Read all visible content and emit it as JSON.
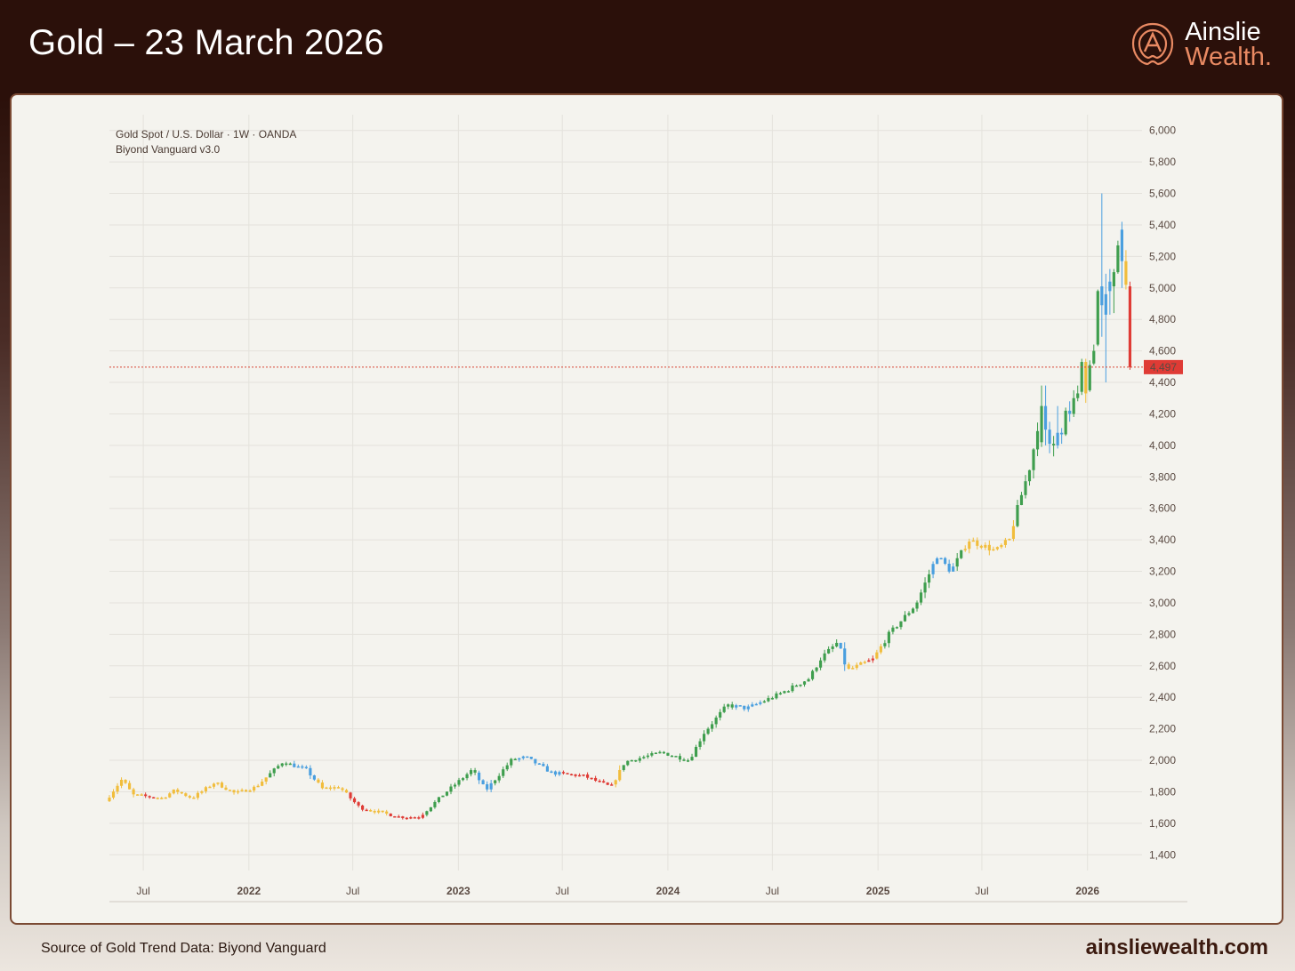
{
  "header": {
    "title": "Gold – 23 March 2026",
    "brand_name": "Ainslie",
    "brand_sub": "Wealth."
  },
  "footer": {
    "source": "Source of Gold Trend Data: Biyond Vanguard",
    "website": "ainsliewealth.com"
  },
  "colors": {
    "green": "#3f9e4e",
    "blue": "#4a9fdf",
    "yellow": "#f1bd3c",
    "red": "#df3b35",
    "price_line": "#d64535"
  },
  "chart_data": {
    "type": "candlestick",
    "title": "Gold Spot / U.S. Dollar · 1W · OANDA",
    "subtitle": "Biyond Vanguard v3.0",
    "ylim": [
      1300,
      6100
    ],
    "yticks": [
      1400,
      1600,
      1800,
      2000,
      2200,
      2400,
      2600,
      2800,
      3000,
      3200,
      3400,
      3600,
      3800,
      4000,
      4200,
      4400,
      4600,
      4800,
      5000,
      5200,
      5400,
      5600,
      5800,
      6000
    ],
    "ytick_labels": [
      "1,400",
      "1,600",
      "1,800",
      "2,000",
      "2,200",
      "2,400",
      "2,600",
      "2,800",
      "3,000",
      "3,200",
      "3,400",
      "3,600",
      "3,800",
      "4,000",
      "4,200",
      "4,400",
      "4,600",
      "4,800",
      "5,000",
      "5,200",
      "5,400",
      "5,600",
      "5,800",
      "6,000"
    ],
    "x_start": "2021-05-03",
    "x_end": "2026-04-06",
    "xticks": [
      {
        "date": "2021-07-01",
        "label": "Jul",
        "bold": false
      },
      {
        "date": "2022-01-01",
        "label": "2022",
        "bold": true
      },
      {
        "date": "2022-07-01",
        "label": "Jul",
        "bold": false
      },
      {
        "date": "2023-01-01",
        "label": "2023",
        "bold": true
      },
      {
        "date": "2023-07-01",
        "label": "Jul",
        "bold": false
      },
      {
        "date": "2024-01-01",
        "label": "2024",
        "bold": true
      },
      {
        "date": "2024-07-01",
        "label": "Jul",
        "bold": false
      },
      {
        "date": "2025-01-01",
        "label": "2025",
        "bold": true
      },
      {
        "date": "2025-07-01",
        "label": "Jul",
        "bold": false
      },
      {
        "date": "2026-01-01",
        "label": "2026",
        "bold": true
      }
    ],
    "last_price": 4497,
    "last_price_label": "4,497",
    "anchors": [
      [
        "2021-05-03",
        1740
      ],
      [
        "2021-06-01",
        1880
      ],
      [
        "2021-06-20",
        1780
      ],
      [
        "2021-08-10",
        1760
      ],
      [
        "2021-09-01",
        1810
      ],
      [
        "2021-10-01",
        1760
      ],
      [
        "2021-11-10",
        1860
      ],
      [
        "2021-12-15",
        1790
      ],
      [
        "2022-01-20",
        1830
      ],
      [
        "2022-03-08",
        1990
      ],
      [
        "2022-04-18",
        1940
      ],
      [
        "2022-05-16",
        1820
      ],
      [
        "2022-06-15",
        1830
      ],
      [
        "2022-07-20",
        1700
      ],
      [
        "2022-09-28",
        1640
      ],
      [
        "2022-11-01",
        1640
      ],
      [
        "2022-12-15",
        1790
      ],
      [
        "2023-02-01",
        1940
      ],
      [
        "2023-02-25",
        1810
      ],
      [
        "2023-04-10",
        2000
      ],
      [
        "2023-05-05",
        2020
      ],
      [
        "2023-06-20",
        1920
      ],
      [
        "2023-08-15",
        1900
      ],
      [
        "2023-10-01",
        1830
      ],
      [
        "2023-10-25",
        1990
      ],
      [
        "2023-12-28",
        2050
      ],
      [
        "2024-02-14",
        2000
      ],
      [
        "2024-03-10",
        2170
      ],
      [
        "2024-04-20",
        2350
      ],
      [
        "2024-05-25",
        2330
      ],
      [
        "2024-07-20",
        2420
      ],
      [
        "2024-09-10",
        2520
      ],
      [
        "2024-10-01",
        2650
      ],
      [
        "2024-10-30",
        2750
      ],
      [
        "2024-11-15",
        2570
      ],
      [
        "2024-12-30",
        2640
      ],
      [
        "2025-01-27",
        2800
      ],
      [
        "2025-03-15",
        2990
      ],
      [
        "2025-04-21",
        3300
      ],
      [
        "2025-05-15",
        3200
      ],
      [
        "2025-06-15",
        3400
      ],
      [
        "2025-08-01",
        3330
      ],
      [
        "2025-08-25",
        3400
      ],
      [
        "2025-09-08",
        3600
      ],
      [
        "2025-10-01",
        3880
      ],
      [
        "2025-10-20",
        4250
      ],
      [
        "2025-10-27",
        4020
      ],
      [
        "2025-11-20",
        4080
      ],
      [
        "2025-12-20",
        4350
      ],
      [
        "2025-12-29",
        4400
      ],
      [
        "2026-01-12",
        4600
      ],
      [
        "2026-01-19",
        4970
      ],
      [
        "2026-01-26",
        4900
      ],
      [
        "2026-02-09",
        5050
      ],
      [
        "2026-02-23",
        5300
      ],
      [
        "2026-03-02",
        5150
      ],
      [
        "2026-03-09",
        5000
      ],
      [
        "2026-03-16",
        4500
      ]
    ],
    "large_candles": [
      {
        "date": "2025-10-13",
        "open": 4020,
        "high": 4380,
        "low": 3990,
        "close": 4250,
        "color": "green"
      },
      {
        "date": "2025-10-20",
        "open": 4250,
        "high": 4380,
        "low": 4000,
        "close": 4100,
        "color": "blue"
      },
      {
        "date": "2025-10-27",
        "open": 4100,
        "high": 4150,
        "low": 3950,
        "close": 4010,
        "color": "blue"
      },
      {
        "date": "2025-11-03",
        "open": 4010,
        "high": 4060,
        "low": 3930,
        "close": 4000,
        "color": "green"
      },
      {
        "date": "2025-11-10",
        "open": 4000,
        "high": 4250,
        "low": 3980,
        "close": 4080,
        "color": "blue"
      },
      {
        "date": "2025-11-17",
        "open": 4080,
        "high": 4110,
        "low": 4010,
        "close": 4070,
        "color": "blue"
      },
      {
        "date": "2025-11-24",
        "open": 4070,
        "high": 4240,
        "low": 4060,
        "close": 4220,
        "color": "green"
      },
      {
        "date": "2025-12-01",
        "open": 4220,
        "high": 4280,
        "low": 4150,
        "close": 4200,
        "color": "blue"
      },
      {
        "date": "2025-12-08",
        "open": 4200,
        "high": 4350,
        "low": 4180,
        "close": 4300,
        "color": "green"
      },
      {
        "date": "2025-12-15",
        "open": 4300,
        "high": 4380,
        "low": 4280,
        "close": 4330,
        "color": "green"
      },
      {
        "date": "2025-12-22",
        "open": 4340,
        "high": 4550,
        "low": 4320,
        "close": 4530,
        "color": "green"
      },
      {
        "date": "2025-12-29",
        "open": 4530,
        "high": 4550,
        "low": 4270,
        "close": 4330,
        "color": "yellow"
      },
      {
        "date": "2026-01-05",
        "open": 4350,
        "high": 4540,
        "low": 4340,
        "close": 4510,
        "color": "green"
      },
      {
        "date": "2026-01-12",
        "open": 4520,
        "high": 4640,
        "low": 4510,
        "close": 4600,
        "color": "green"
      },
      {
        "date": "2026-01-19",
        "open": 4640,
        "high": 4990,
        "low": 4630,
        "close": 4980,
        "color": "green"
      },
      {
        "date": "2026-01-26",
        "open": 5010,
        "high": 5600,
        "low": 4690,
        "close": 4890,
        "color": "blue"
      },
      {
        "date": "2026-02-02",
        "open": 4960,
        "high": 5090,
        "low": 4400,
        "close": 4830,
        "color": "blue"
      },
      {
        "date": "2026-02-09",
        "open": 4980,
        "high": 5120,
        "low": 4830,
        "close": 5040,
        "color": "blue"
      },
      {
        "date": "2026-02-16",
        "open": 5010,
        "high": 5120,
        "low": 4840,
        "close": 5100,
        "color": "green"
      },
      {
        "date": "2026-02-23",
        "open": 5100,
        "high": 5300,
        "low": 5090,
        "close": 5270,
        "color": "green"
      },
      {
        "date": "2026-03-02",
        "open": 5370,
        "high": 5420,
        "low": 5000,
        "close": 5170,
        "color": "blue"
      },
      {
        "date": "2026-03-09",
        "open": 5170,
        "high": 5240,
        "low": 4990,
        "close": 5020,
        "color": "yellow"
      },
      {
        "date": "2026-03-16",
        "open": 5010,
        "high": 5040,
        "low": 4480,
        "close": 4497,
        "color": "red"
      }
    ],
    "color_ranges": [
      {
        "from": "2021-05-03",
        "to": "2021-06-28",
        "color": "yellow"
      },
      {
        "from": "2021-06-29",
        "to": "2021-07-20",
        "color": "red"
      },
      {
        "from": "2021-07-21",
        "to": "2021-10-31",
        "color": "yellow"
      },
      {
        "from": "2021-11-01",
        "to": "2022-01-31",
        "color": "yellow"
      },
      {
        "from": "2022-02-01",
        "to": "2022-03-20",
        "color": "green"
      },
      {
        "from": "2022-03-21",
        "to": "2022-04-30",
        "color": "blue"
      },
      {
        "from": "2022-05-01",
        "to": "2022-06-20",
        "color": "yellow"
      },
      {
        "from": "2022-06-21",
        "to": "2022-07-31",
        "color": "red"
      },
      {
        "from": "2022-08-01",
        "to": "2022-08-31",
        "color": "yellow"
      },
      {
        "from": "2022-09-01",
        "to": "2022-11-05",
        "color": "red"
      },
      {
        "from": "2022-11-06",
        "to": "2023-01-31",
        "color": "green"
      },
      {
        "from": "2023-02-01",
        "to": "2023-02-28",
        "color": "blue"
      },
      {
        "from": "2023-03-01",
        "to": "2023-04-15",
        "color": "green"
      },
      {
        "from": "2023-04-16",
        "to": "2023-06-30",
        "color": "blue"
      },
      {
        "from": "2023-07-01",
        "to": "2023-09-30",
        "color": "red"
      },
      {
        "from": "2023-10-01",
        "to": "2023-10-15",
        "color": "yellow"
      },
      {
        "from": "2023-10-16",
        "to": "2024-02-29",
        "color": "green"
      },
      {
        "from": "2024-03-01",
        "to": "2024-04-25",
        "color": "green"
      },
      {
        "from": "2024-04-26",
        "to": "2024-06-15",
        "color": "blue"
      },
      {
        "from": "2024-06-16",
        "to": "2024-10-25",
        "color": "green"
      },
      {
        "from": "2024-10-26",
        "to": "2024-11-10",
        "color": "blue"
      },
      {
        "from": "2024-11-11",
        "to": "2024-12-10",
        "color": "yellow"
      },
      {
        "from": "2024-12-11",
        "to": "2024-12-25",
        "color": "red"
      },
      {
        "from": "2024-12-26",
        "to": "2025-01-10",
        "color": "yellow"
      },
      {
        "from": "2025-01-11",
        "to": "2025-04-05",
        "color": "green"
      },
      {
        "from": "2025-04-06",
        "to": "2025-05-15",
        "color": "blue"
      },
      {
        "from": "2025-05-16",
        "to": "2025-05-31",
        "color": "green"
      },
      {
        "from": "2025-06-01",
        "to": "2025-08-31",
        "color": "yellow"
      },
      {
        "from": "2025-09-01",
        "to": "2025-10-12",
        "color": "green"
      }
    ]
  }
}
